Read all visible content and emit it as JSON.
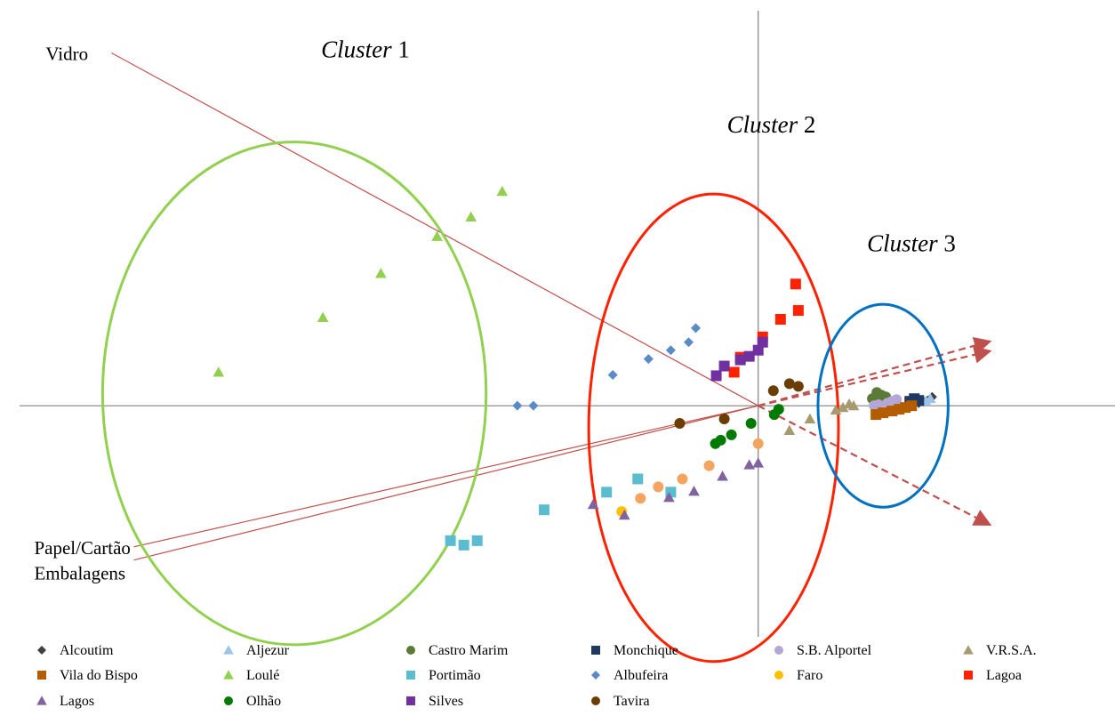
{
  "chart_data": {
    "type": "scatter",
    "title": "",
    "xlabel": "",
    "ylabel": "",
    "xlim": [
      -8.5,
      4.0
    ],
    "ylim": [
      -2.6,
      4.6
    ],
    "grid": false,
    "axes": "cross-at-origin",
    "legend_placement": "bottom",
    "clusters": [
      {
        "label_italic": "Cluster",
        "label_num": "1",
        "color": "#92d050",
        "center": [
          -5.2,
          0.14
        ],
        "radius": [
          2.15,
          2.85
        ]
      },
      {
        "label_italic": "Cluster",
        "label_num": "2",
        "color": "#ff2200",
        "center": [
          -0.5,
          -0.25
        ],
        "radius": [
          1.4,
          2.65
        ]
      },
      {
        "label_italic": "Cluster",
        "label_num": "3",
        "color": "#0070c0",
        "center": [
          1.4,
          0.0
        ],
        "radius": [
          0.73,
          1.15
        ]
      }
    ],
    "vectors": [
      {
        "label": "Vidro",
        "end": [
          -7.25,
          4.0
        ],
        "style": "solid",
        "color": "#c0504d"
      },
      {
        "label": "Papel/Cartão",
        "end": [
          -7.0,
          -1.6
        ],
        "style": "solid",
        "color": "#c0504d"
      },
      {
        "label": "Embalagens",
        "end": [
          -7.0,
          -1.75
        ],
        "style": "solid",
        "color": "#c0504d"
      },
      {
        "label": "",
        "end": [
          2.6,
          0.73
        ],
        "style": "dashed",
        "color": "#c0504d"
      },
      {
        "label": "",
        "end": [
          2.6,
          0.62
        ],
        "style": "dashed",
        "color": "#c0504d"
      },
      {
        "label": "",
        "end": [
          2.6,
          -1.35
        ],
        "style": "dashed",
        "color": "#c0504d"
      }
    ],
    "series": [
      {
        "name": "Alcoutim",
        "marker": "diamond",
        "color": "#404040",
        "x": [
          1.8,
          1.85,
          1.9,
          1.95
        ],
        "y": [
          0.03,
          0.05,
          0.06,
          0.1
        ]
      },
      {
        "name": "Aljezur",
        "marker": "triangle",
        "color": "#9dc3e6",
        "x": [
          1.88,
          1.93
        ],
        "y": [
          0.05,
          0.08
        ]
      },
      {
        "name": "Castro Marim",
        "marker": "circle",
        "color": "#5b7a35",
        "x": [
          1.28,
          1.33,
          1.38,
          1.43
        ],
        "y": [
          0.08,
          0.15,
          0.12,
          0.1
        ]
      },
      {
        "name": "Monchique",
        "marker": "square",
        "color": "#1f3864",
        "x": [
          1.7,
          1.75,
          1.8
        ],
        "y": [
          0.05,
          0.08,
          0.06
        ]
      },
      {
        "name": "S.B. Alportel",
        "marker": "circle",
        "color": "#b4a7d6",
        "x": [
          1.3,
          1.35,
          1.45,
          1.5,
          1.55
        ],
        "y": [
          0.0,
          0.01,
          0.03,
          0.05,
          0.07
        ]
      },
      {
        "name": "V.R.S.A.",
        "marker": "triangle",
        "color": "#a59a70",
        "x": [
          0.35,
          0.58,
          0.87,
          0.95,
          1.02,
          1.07
        ],
        "y": [
          -0.28,
          -0.15,
          -0.05,
          -0.02,
          0.02,
          0.0
        ]
      },
      {
        "name": "Vila do Bispo",
        "marker": "square",
        "color": "#b35c00",
        "x": [
          1.32,
          1.4,
          1.5,
          1.58,
          1.65,
          1.72
        ],
        "y": [
          -0.1,
          -0.08,
          -0.06,
          -0.04,
          -0.02,
          0.0
        ]
      },
      {
        "name": "Loulé",
        "marker": "triangle",
        "color": "#92d050",
        "x": [
          -6.05,
          -4.88,
          -4.23,
          -3.6,
          -3.22,
          -2.87
        ],
        "y": [
          0.38,
          1.0,
          1.5,
          1.92,
          2.14,
          2.43
        ]
      },
      {
        "name": "Portimão",
        "marker": "square",
        "color": "#5bbcd0",
        "x": [
          -3.45,
          -3.3,
          -3.15,
          -2.4,
          -1.7,
          -1.35,
          -0.98
        ],
        "y": [
          -1.53,
          -1.58,
          -1.53,
          -1.18,
          -0.98,
          -0.83,
          -0.98
        ]
      },
      {
        "name": "Albufeira",
        "marker": "diamond",
        "color": "#5b8bc6",
        "x": [
          -2.7,
          -2.52,
          -1.63,
          -1.23,
          -0.98,
          -0.78,
          -0.7
        ],
        "y": [
          0.0,
          0.0,
          0.35,
          0.53,
          0.63,
          0.72,
          0.88
        ]
      },
      {
        "name": "Faro",
        "marker": "circle",
        "color": "#ffc000",
        "x": [
          -1.53
        ],
        "y": [
          -1.2
        ]
      },
      {
        "name": "Lagoa",
        "marker": "square",
        "color": "#ff2200",
        "x": [
          -0.27,
          -0.2,
          0.05,
          0.25,
          0.45,
          0.42
        ],
        "y": [
          0.38,
          0.55,
          0.78,
          0.98,
          1.08,
          1.38
        ]
      },
      {
        "name": "Lagos",
        "marker": "triangle",
        "color": "#8064a2",
        "x": [
          -1.85,
          -1.5,
          -1.0,
          -0.72,
          -0.4,
          -0.1,
          0.0
        ],
        "y": [
          -1.12,
          -1.24,
          -1.04,
          -0.97,
          -0.8,
          -0.67,
          -0.65
        ]
      },
      {
        "name": "Olhão",
        "marker": "circle",
        "color": "#007a00",
        "x": [
          -0.48,
          -0.42,
          -0.3,
          -0.08,
          0.18,
          0.23
        ],
        "y": [
          -0.43,
          -0.39,
          -0.33,
          -0.2,
          -0.1,
          -0.04
        ]
      },
      {
        "name": "Silves",
        "marker": "square",
        "color": "#7030a0",
        "x": [
          -0.47,
          -0.38,
          -0.2,
          -0.1,
          0.0,
          0.05
        ],
        "y": [
          0.34,
          0.45,
          0.52,
          0.56,
          0.63,
          0.72
        ]
      },
      {
        "name": "Tavira",
        "marker": "circle",
        "color": "#6b3d00",
        "x": [
          -0.88,
          -0.38,
          0.17,
          0.35,
          0.45
        ],
        "y": [
          -0.2,
          -0.15,
          0.17,
          0.25,
          0.22
        ]
      },
      {
        "name": "",
        "marker": "circle",
        "color": "#f4a460",
        "x": [
          -1.32,
          -1.12,
          -0.85,
          -0.55,
          0.0
        ],
        "y": [
          -1.05,
          -0.92,
          -0.83,
          -0.68,
          -0.43
        ]
      }
    ]
  }
}
